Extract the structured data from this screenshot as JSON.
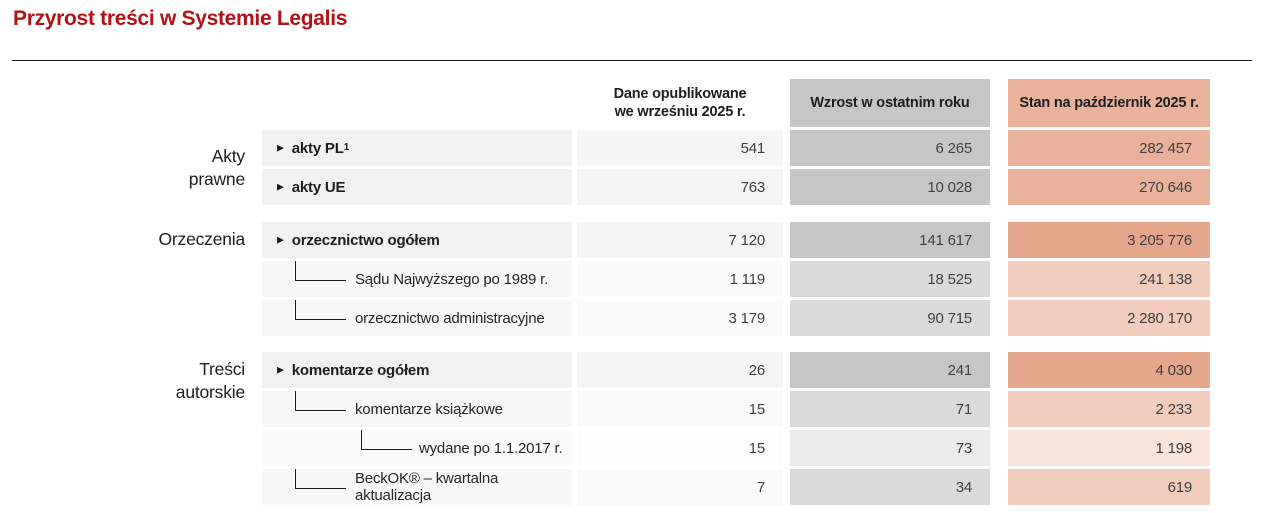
{
  "page": {
    "title": "Przyrost treści w Systemie Legalis"
  },
  "theme": {
    "title_color": "#B11217",
    "growth_header_gray": "#C6C6C6",
    "status_header_salmon": "#EAB29B",
    "status_dark_salmon": "#E4A78B",
    "status_mid_salmon": "#F2CCBD",
    "status_light_salmon": "#F8E4DB"
  },
  "icons": {
    "bullet": "▶"
  },
  "table": {
    "columns": {
      "published_line1": "Dane opublikowane",
      "published_line2": "we wrześniu 2025 r.",
      "growth": "Wzrost w ostatnim roku",
      "status": "Stan na październik 2025 r."
    },
    "sections": [
      {
        "group": "Akty prawne",
        "group_line1": "Akty",
        "group_line2": "prawne",
        "rows": [
          {
            "label": "akty PL",
            "footnote": "1",
            "level": 0,
            "published": "541",
            "growth": "6 265",
            "status": "282 457"
          },
          {
            "label": "akty UE",
            "footnote": "",
            "level": 0,
            "published": "763",
            "growth": "10 028",
            "status": "270 646"
          }
        ]
      },
      {
        "group": "Orzeczenia",
        "group_line1": "Orzeczenia",
        "group_line2": "",
        "rows": [
          {
            "label": "orzecznictwo ogółem",
            "level": 0,
            "published": "7 120",
            "growth": "141 617",
            "status": "3 205 776"
          },
          {
            "label": "Sądu Najwyższego po 1989 r.",
            "level": 1,
            "published": "1 119",
            "growth": "18 525",
            "status": "241 138"
          },
          {
            "label": "orzecznictwo administracyjne",
            "level": 1,
            "published": "3 179",
            "growth": "90 715",
            "status": "2 280 170"
          }
        ]
      },
      {
        "group": "Treści autorskie",
        "group_line1": "Treści",
        "group_line2": "autorskie",
        "rows": [
          {
            "label": "komentarze ogółem",
            "level": 0,
            "published": "26",
            "growth": "241",
            "status": "4 030"
          },
          {
            "label": "komentarze książkowe",
            "level": 1,
            "published": "15",
            "growth": "71",
            "status": "2 233"
          },
          {
            "label": "wydane po 1.1.2017 r.",
            "level": 2,
            "published": "15",
            "growth": "73",
            "status": "1 198"
          },
          {
            "label": "BeckOK® – kwartalna aktualizacja",
            "level": 1,
            "published": "7",
            "growth": "34",
            "status": "619"
          }
        ]
      }
    ]
  }
}
